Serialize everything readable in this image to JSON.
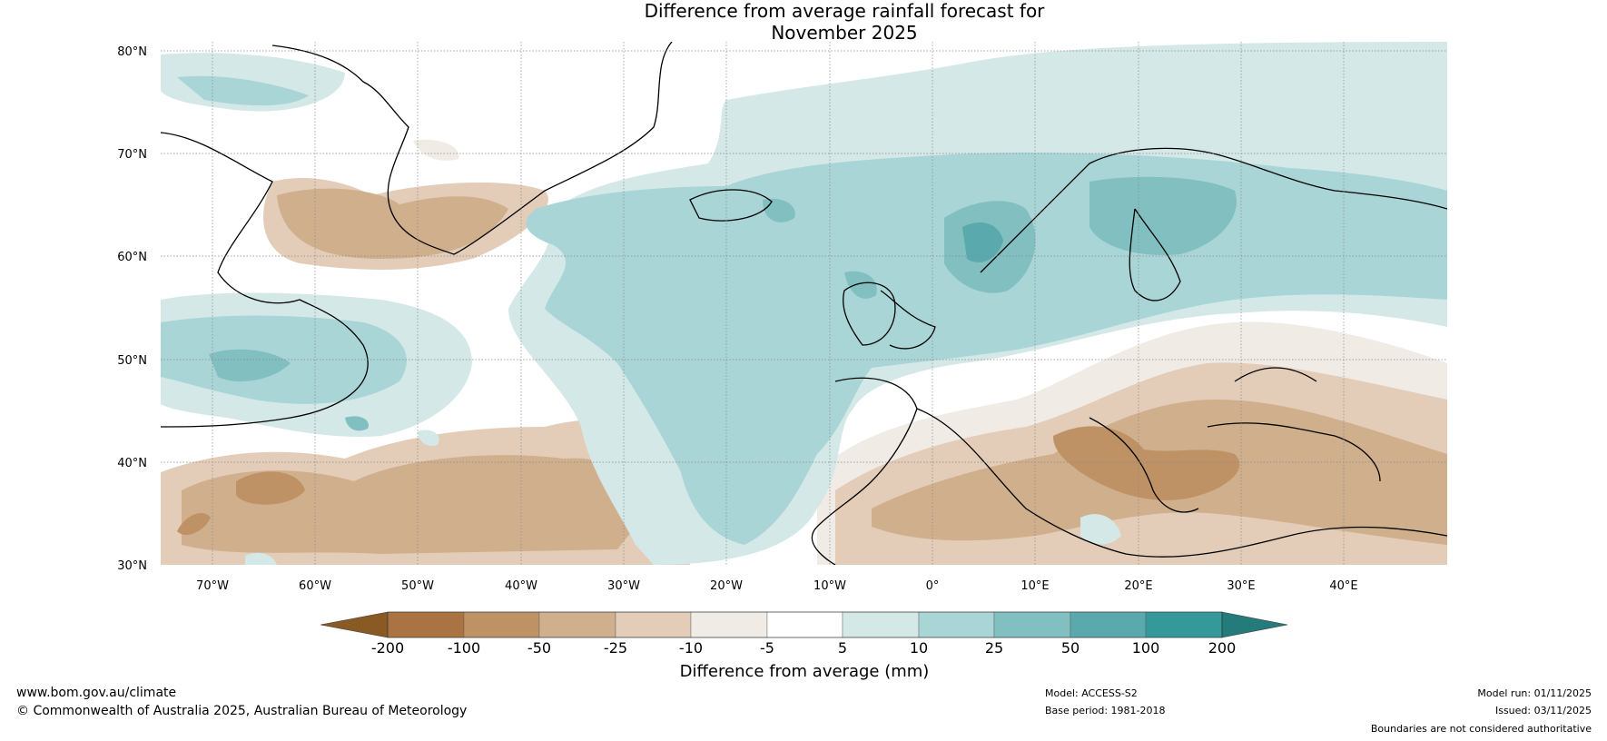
{
  "title": "Difference from average rainfall forecast for\nNovember 2025",
  "map": {
    "lat_labels": [
      "80°N",
      "70°N",
      "60°N",
      "50°N",
      "40°N",
      "30°N"
    ],
    "lon_labels": [
      "70°W",
      "60°W",
      "50°W",
      "40°W",
      "30°W",
      "20°W",
      "10°W",
      "0°",
      "10°E",
      "20°E",
      "30°E",
      "40°E"
    ],
    "lat_range": [
      30,
      80
    ],
    "lon_range": [
      -75,
      50
    ]
  },
  "colorbar": {
    "title": "Difference from average (mm)",
    "ticks": [
      "-200",
      "-100",
      "-50",
      "-25",
      "-10",
      "-5",
      "5",
      "10",
      "25",
      "50",
      "100",
      "200"
    ],
    "under_color": "#8a5a24",
    "over_color": "#257a7a",
    "colors": [
      "#ab7343",
      "#bf9266",
      "#d0af8c",
      "#e3cdb9",
      "#f1ebe5",
      "#ffffff",
      "#d4e8e8",
      "#a9d5d6",
      "#82bfc0",
      "#5aa9ac",
      "#35999a"
    ]
  },
  "footer": {
    "url": "www.bom.gov.au/climate",
    "copyright": "© Commonwealth of Australia 2025, Australian Bureau of Meteorology",
    "model": "Model: ACCESS-S2",
    "base_period": "Base period: 1981-2018",
    "model_run": "Model run: 01/11/2025",
    "issued": "Issued: 03/11/2025",
    "disclaimer": "Boundaries are not considered authoritative"
  }
}
